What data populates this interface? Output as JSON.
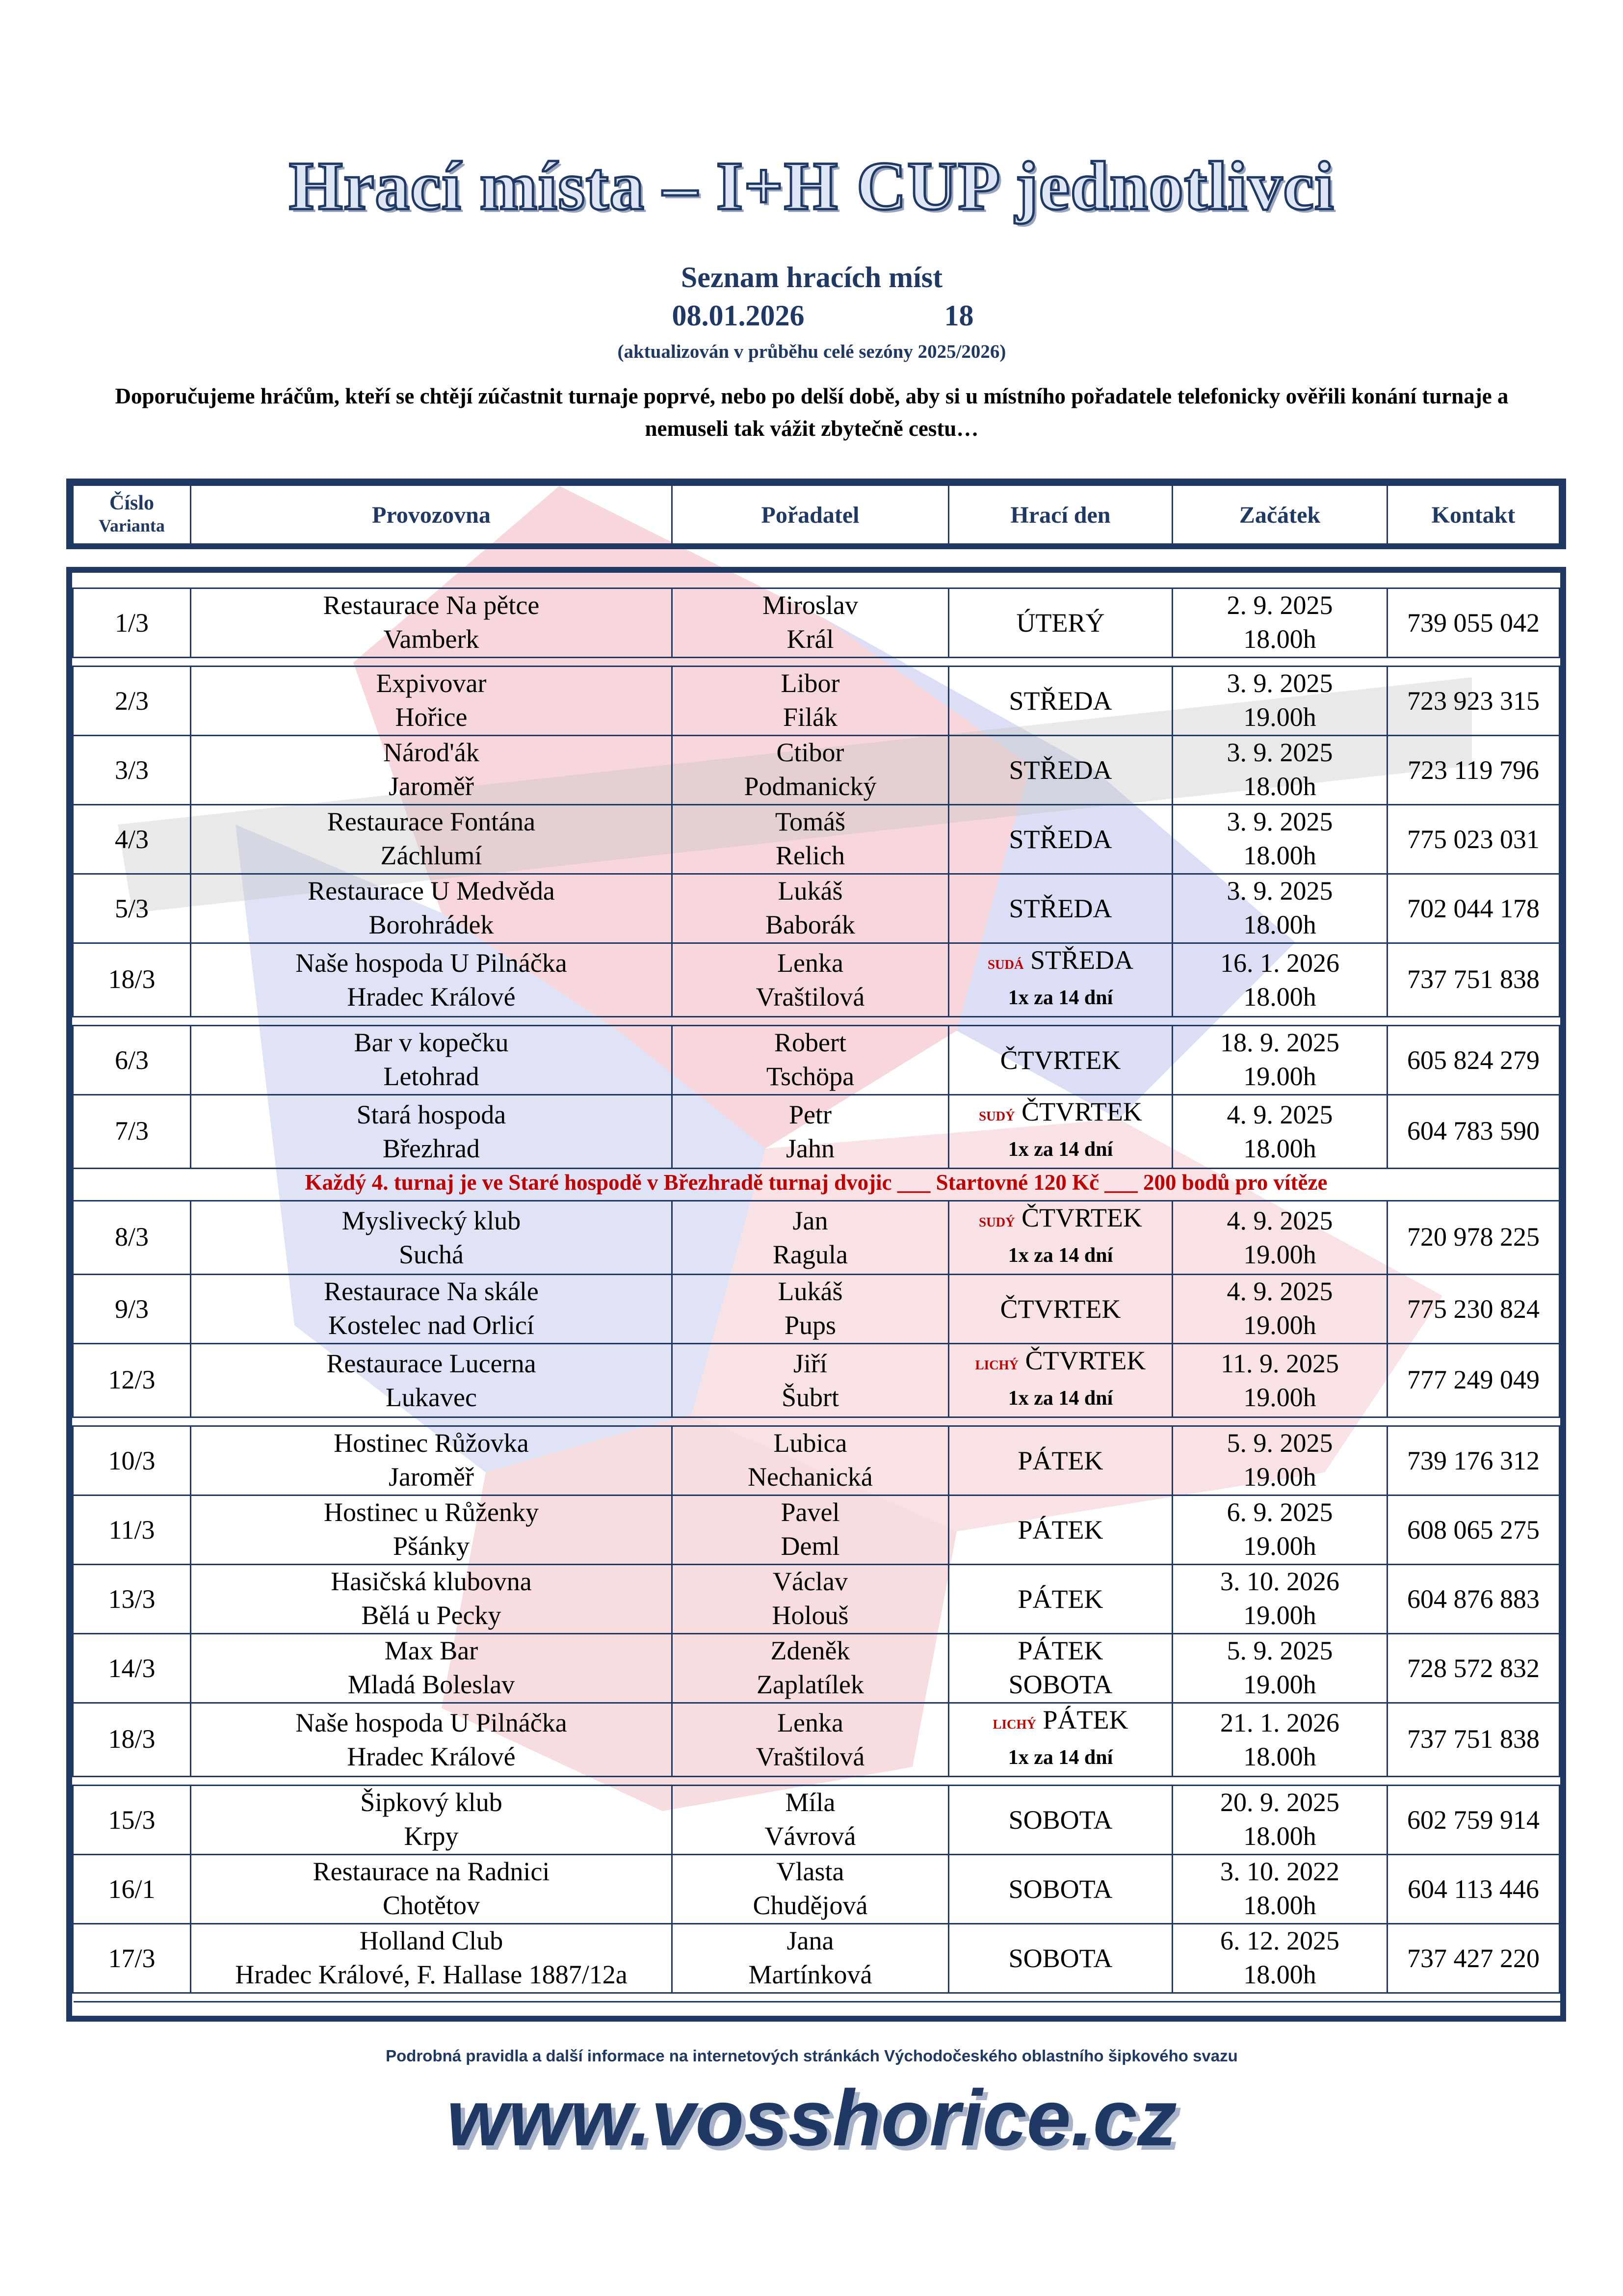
{
  "header": {
    "title": "Hrací místa – I+H CUP jednotlivci",
    "subtitle": "Seznam hracích míst",
    "date": "08.01.2026",
    "count": "18",
    "updated": "(aktualizován v průběhu celé sezóny 2025/2026)",
    "intro": "Doporučujeme hráčům, kteří se chtějí zúčastnit turnaje poprvé, nebo po delší době, aby si u místního pořadatele telefonicky ověřili konání turnaje a nemuseli tak vážit zbytečně cestu…"
  },
  "table": {
    "columns": [
      [
        "Číslo",
        "Varianta"
      ],
      [
        "Provozovna"
      ],
      [
        "Pořadatel"
      ],
      [
        "Hrací den"
      ],
      [
        "Začátek"
      ],
      [
        "Kontakt"
      ]
    ],
    "groups": [
      {
        "rows": [
          {
            "cislo": "1/3",
            "provozovna": [
              "Restaurace Na pětce",
              "Vamberk"
            ],
            "poradatel": [
              "Miroslav",
              "Král"
            ],
            "den": {
              "days": [
                "ÚTERÝ"
              ]
            },
            "zacatek": [
              "2. 9. 2025",
              "18.00h"
            ],
            "kontakt": "739 055 042"
          }
        ]
      },
      {
        "rows": [
          {
            "cislo": "2/3",
            "provozovna": [
              "Expivovar",
              "Hořice"
            ],
            "poradatel": [
              "Libor",
              "Filák"
            ],
            "den": {
              "days": [
                "STŘEDA"
              ]
            },
            "zacatek": [
              "3. 9. 2025",
              "19.00h"
            ],
            "kontakt": "723 923 315"
          },
          {
            "cislo": "3/3",
            "provozovna": [
              "Národ'ák",
              "Jaroměř"
            ],
            "poradatel": [
              "Ctibor",
              "Podmanický"
            ],
            "den": {
              "days": [
                "STŘEDA"
              ]
            },
            "zacatek": [
              "3. 9. 2025",
              "18.00h"
            ],
            "kontakt": "723 119 796"
          },
          {
            "cislo": "4/3",
            "provozovna": [
              "Restaurace Fontána",
              "Záchlumí"
            ],
            "poradatel": [
              "Tomáš",
              "Relich"
            ],
            "den": {
              "days": [
                "STŘEDA"
              ]
            },
            "zacatek": [
              "3. 9. 2025",
              "18.00h"
            ],
            "kontakt": "775 023 031"
          },
          {
            "cislo": "5/3",
            "provozovna": [
              "Restaurace U Medvěda",
              "Borohrádek"
            ],
            "poradatel": [
              "Lukáš",
              "Baborák"
            ],
            "den": {
              "days": [
                "STŘEDA"
              ]
            },
            "zacatek": [
              "3. 9. 2025",
              "18.00h"
            ],
            "kontakt": "702 044 178"
          },
          {
            "cislo": "18/3",
            "provozovna": [
              "Naše hospoda U Pilnáčka",
              "Hradec Králové"
            ],
            "poradatel": [
              "Lenka",
              "Vraštilová"
            ],
            "den": {
              "tag": "SUDÁ",
              "days": [
                "STŘEDA"
              ],
              "frequency": "1x za 14 dní"
            },
            "zacatek": [
              "16. 1. 2026",
              "18.00h"
            ],
            "kontakt": "737 751 838"
          }
        ]
      },
      {
        "rows": [
          {
            "cislo": "6/3",
            "provozovna": [
              "Bar v kopečku",
              "Letohrad"
            ],
            "poradatel": [
              "Robert",
              "Tschöpa"
            ],
            "den": {
              "days": [
                "ČTVRTEK"
              ]
            },
            "zacatek": [
              "18. 9. 2025",
              "19.00h"
            ],
            "kontakt": "605 824 279"
          },
          {
            "cislo": "7/3",
            "provozovna": [
              "Stará hospoda",
              "Březhrad"
            ],
            "poradatel": [
              "Petr",
              "Jahn"
            ],
            "den": {
              "tag": "SUDÝ",
              "days": [
                "ČTVRTEK"
              ],
              "frequency": "1x za 14 dní"
            },
            "zacatek": [
              "4. 9. 2025",
              "18.00h"
            ],
            "kontakt": "604 783 590"
          },
          {
            "notice": "Každý 4. turnaj je ve Staré hospodě v Březhradě turnaj dvojic ___ Startovné 120 Kč ___ 200 bodů pro vítěze"
          },
          {
            "cislo": "8/3",
            "provozovna": [
              "Myslivecký klub",
              "Suchá"
            ],
            "poradatel": [
              "Jan",
              "Ragula"
            ],
            "den": {
              "tag": "SUDÝ",
              "days": [
                "ČTVRTEK"
              ],
              "frequency": "1x za 14 dní"
            },
            "zacatek": [
              "4. 9. 2025",
              "19.00h"
            ],
            "kontakt": "720 978 225"
          },
          {
            "cislo": "9/3",
            "provozovna": [
              "Restaurace Na skále",
              "Kostelec nad Orlicí"
            ],
            "poradatel": [
              "Lukáš",
              "Pups"
            ],
            "den": {
              "days": [
                "ČTVRTEK"
              ]
            },
            "zacatek": [
              "4. 9. 2025",
              "19.00h"
            ],
            "kontakt": "775 230 824"
          },
          {
            "cislo": "12/3",
            "provozovna": [
              "Restaurace Lucerna",
              "Lukavec"
            ],
            "poradatel": [
              "Jiří",
              "Šubrt"
            ],
            "den": {
              "tag": "LICHÝ",
              "days": [
                "ČTVRTEK"
              ],
              "frequency": "1x za 14 dní"
            },
            "zacatek": [
              "11. 9. 2025",
              "19.00h"
            ],
            "kontakt": "777 249 049"
          }
        ]
      },
      {
        "rows": [
          {
            "cislo": "10/3",
            "provozovna": [
              "Hostinec Růžovka",
              "Jaroměř"
            ],
            "poradatel": [
              "Lubica",
              "Nechanická"
            ],
            "den": {
              "days": [
                "PÁTEK"
              ]
            },
            "zacatek": [
              "5. 9. 2025",
              "19.00h"
            ],
            "kontakt": "739 176 312"
          },
          {
            "cislo": "11/3",
            "provozovna": [
              "Hostinec u Růženky",
              "Pšánky"
            ],
            "poradatel": [
              "Pavel",
              "Deml"
            ],
            "den": {
              "days": [
                "PÁTEK"
              ]
            },
            "zacatek": [
              "6. 9. 2025",
              "19.00h"
            ],
            "kontakt": "608 065 275"
          },
          {
            "cislo": "13/3",
            "provozovna": [
              "Hasičská klubovna",
              "Bělá u Pecky"
            ],
            "poradatel": [
              "Václav",
              "Holouš"
            ],
            "den": {
              "days": [
                "PÁTEK"
              ]
            },
            "zacatek": [
              "3. 10. 2026",
              "19.00h"
            ],
            "kontakt": "604 876 883"
          },
          {
            "cislo": "14/3",
            "provozovna": [
              "Max Bar",
              "Mladá Boleslav"
            ],
            "poradatel": [
              "Zdeněk",
              "Zaplatílek"
            ],
            "den": {
              "days": [
                "PÁTEK",
                "SOBOTA"
              ]
            },
            "zacatek": [
              "5. 9. 2025",
              "19.00h"
            ],
            "kontakt": "728 572 832"
          },
          {
            "cislo": "18/3",
            "provozovna": [
              "Naše hospoda U Pilnáčka",
              "Hradec Králové"
            ],
            "poradatel": [
              "Lenka",
              "Vraštilová"
            ],
            "den": {
              "tag": "LICHÝ",
              "days": [
                "PÁTEK"
              ],
              "frequency": "1x za 14 dní"
            },
            "zacatek": [
              "21. 1. 2026",
              "18.00h"
            ],
            "kontakt": "737 751 838"
          }
        ]
      },
      {
        "rows": [
          {
            "cislo": "15/3",
            "provozovna": [
              "Šipkový klub",
              "Krpy"
            ],
            "poradatel": [
              "Míla",
              "Vávrová"
            ],
            "den": {
              "days": [
                "SOBOTA"
              ]
            },
            "zacatek": [
              "20. 9. 2025",
              "18.00h"
            ],
            "kontakt": "602 759 914"
          },
          {
            "cislo": "16/1",
            "provozovna": [
              "Restaurace na Radnici",
              "Chotětov"
            ],
            "poradatel": [
              "Vlasta",
              "Chudějová"
            ],
            "den": {
              "days": [
                "SOBOTA"
              ]
            },
            "zacatek": [
              "3. 10. 2022",
              "18.00h"
            ],
            "kontakt": "604 113 446"
          },
          {
            "cislo": "17/3",
            "provozovna": [
              "Holland Club",
              "Hradec Králové, F. Hallase 1887/12a"
            ],
            "poradatel": [
              "Jana",
              "Martínková"
            ],
            "den": {
              "days": [
                "SOBOTA"
              ]
            },
            "zacatek": [
              "6. 12. 2025",
              "18.00h"
            ],
            "kontakt": "737 427 220"
          }
        ]
      }
    ]
  },
  "footer": {
    "text": "Podrobná pravidla a další informace na internetových stránkách Východočeského oblastního šipkového svazu",
    "url": "www.vosshorice.cz"
  }
}
